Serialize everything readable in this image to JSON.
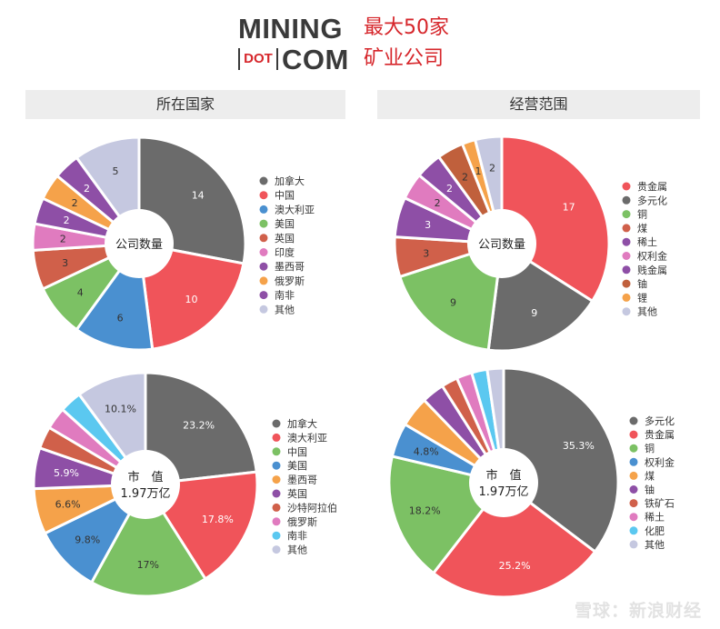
{
  "logo": {
    "line1": "MINING",
    "dot": "DOT",
    "line2": "COM",
    "cn_line1": "最大50家",
    "cn_line2": "矿业公司"
  },
  "headers": {
    "left": "所在国家",
    "right": "经营范围"
  },
  "watermark": "雪球：新浪财经",
  "chart_data": [
    {
      "id": "count-by-country",
      "type": "pie",
      "style": "donut",
      "center_label": [
        "公司数量"
      ],
      "slices": [
        {
          "label": "加拿大",
          "value": 14,
          "display": "14",
          "color": "#6b6b6b"
        },
        {
          "label": "中国",
          "value": 10,
          "display": "10",
          "color": "#f0545a"
        },
        {
          "label": "澳大利亚",
          "value": 6,
          "display": "6",
          "color": "#4a90d0"
        },
        {
          "label": "美国",
          "value": 4,
          "display": "4",
          "color": "#7cc164"
        },
        {
          "label": "英国",
          "value": 3,
          "display": "3",
          "color": "#d0604a"
        },
        {
          "label": "印度",
          "value": 2,
          "display": "2",
          "color": "#e07bbf"
        },
        {
          "label": "墨西哥",
          "value": 2,
          "display": "2",
          "color": "#8e4fa6"
        },
        {
          "label": "俄罗斯",
          "value": 2,
          "display": "2",
          "color": "#f5a24a"
        },
        {
          "label": "南非",
          "value": 2,
          "display": "2",
          "color": "#8e4fa6"
        },
        {
          "label": "其他",
          "value": 5,
          "display": "5",
          "color": "#c5c8e0"
        }
      ]
    },
    {
      "id": "count-by-business",
      "type": "pie",
      "style": "donut",
      "center_label": [
        "公司数量"
      ],
      "slices": [
        {
          "label": "贵金属",
          "value": 17,
          "display": "17",
          "color": "#f0545a"
        },
        {
          "label": "多元化",
          "value": 9,
          "display": "9",
          "color": "#6b6b6b"
        },
        {
          "label": "铜",
          "value": 9,
          "display": "9",
          "color": "#7cc164"
        },
        {
          "label": "煤",
          "value": 3,
          "display": "3",
          "color": "#d0604a"
        },
        {
          "label": "稀土",
          "value": 3,
          "display": "3",
          "color": "#8e4fa6"
        },
        {
          "label": "权利金",
          "value": 2,
          "display": "2",
          "color": "#e07bbf"
        },
        {
          "label": "贱金属",
          "value": 2,
          "display": "2",
          "color": "#8e4fa6"
        },
        {
          "label": "铀",
          "value": 2,
          "display": "2",
          "color": "#c0603c"
        },
        {
          "label": "锂",
          "value": 1,
          "display": "1",
          "color": "#f5a24a"
        },
        {
          "label": "其他",
          "value": 2,
          "display": "2",
          "color": "#c5c8e0"
        }
      ]
    },
    {
      "id": "marketcap-by-country",
      "type": "pie",
      "style": "donut",
      "center_label": [
        "市　值",
        "1.97万亿"
      ],
      "slices": [
        {
          "label": "加拿大",
          "value": 23.2,
          "display": "23.2%",
          "color": "#6b6b6b"
        },
        {
          "label": "澳大利亚",
          "value": 17.8,
          "display": "17.8%",
          "color": "#f0545a"
        },
        {
          "label": "中国",
          "value": 17,
          "display": "17%",
          "color": "#7cc164"
        },
        {
          "label": "美国",
          "value": 9.8,
          "display": "9.8%",
          "color": "#4a90d0"
        },
        {
          "label": "墨西哥",
          "value": 6.6,
          "display": "6.6%",
          "color": "#f5a24a"
        },
        {
          "label": "英国",
          "value": 5.9,
          "display": "5.9%",
          "color": "#8e4fa6"
        },
        {
          "label": "沙特阿拉伯",
          "value": 3.2,
          "display": "",
          "color": "#d0604a"
        },
        {
          "label": "俄罗斯",
          "value": 3.2,
          "display": "",
          "color": "#e07bbf"
        },
        {
          "label": "南非",
          "value": 3.2,
          "display": "",
          "color": "#5bc8f0"
        },
        {
          "label": "其他",
          "value": 10.1,
          "display": "10.1%",
          "color": "#c5c8e0"
        }
      ]
    },
    {
      "id": "marketcap-by-business",
      "type": "pie",
      "style": "donut",
      "center_label": [
        "市　值",
        "1.97万亿"
      ],
      "slices": [
        {
          "label": "多元化",
          "value": 35.3,
          "display": "35.3%",
          "color": "#6b6b6b"
        },
        {
          "label": "贵金属",
          "value": 25.2,
          "display": "25.2%",
          "color": "#f0545a"
        },
        {
          "label": "铜",
          "value": 18.2,
          "display": "18.2%",
          "color": "#7cc164"
        },
        {
          "label": "权利金",
          "value": 4.8,
          "display": "4.8%",
          "color": "#4a90d0"
        },
        {
          "label": "煤",
          "value": 4.3,
          "display": "",
          "color": "#f5a24a"
        },
        {
          "label": "铀",
          "value": 3.2,
          "display": "",
          "color": "#8e4fa6"
        },
        {
          "label": "铁矿石",
          "value": 2.3,
          "display": "",
          "color": "#d0604a"
        },
        {
          "label": "稀土",
          "value": 2.2,
          "display": "",
          "color": "#e07bbf"
        },
        {
          "label": "化肥",
          "value": 2.2,
          "display": "",
          "color": "#5bc8f0"
        },
        {
          "label": "其他",
          "value": 2.3,
          "display": "",
          "color": "#c5c8e0"
        }
      ]
    }
  ]
}
